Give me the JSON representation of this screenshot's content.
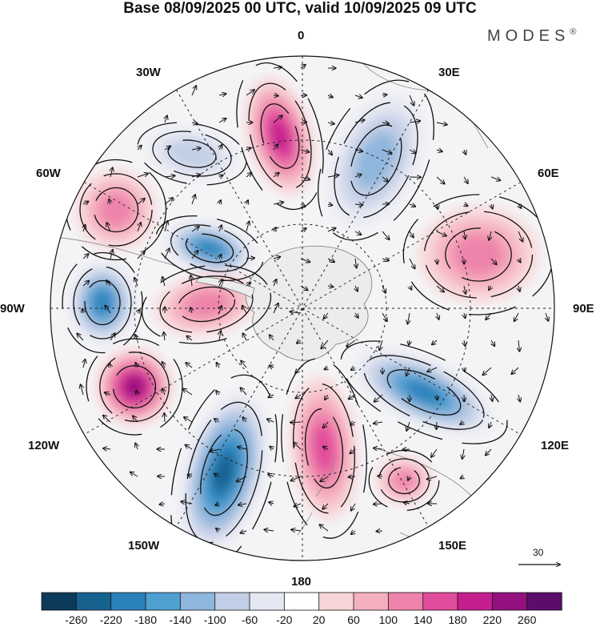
{
  "title": "Base 08/09/2025 00 UTC, valid 10/09/2025 09 UTC",
  "brand": {
    "name": "MODES",
    "mark": "®"
  },
  "longitude_labels": {
    "top": "0",
    "bottom": "180",
    "left": "90W",
    "right": "90E",
    "upper_left_30": "30W",
    "upper_right_30": "30E",
    "upper_left_60": "60W",
    "upper_right_60": "60E",
    "lower_left_120": "120W",
    "lower_right_120": "120E",
    "lower_left_150": "150W",
    "lower_right_150": "150E"
  },
  "reference_vector": {
    "label": "30"
  },
  "colorbar": {
    "ticks": [
      "-260",
      "-220",
      "-180",
      "-140",
      "-100",
      "-60",
      "-20",
      "20",
      "60",
      "100",
      "140",
      "180",
      "220",
      "260"
    ],
    "colors": [
      "#0d3a5a",
      "#17618f",
      "#2b82bb",
      "#4f9fd0",
      "#8fb6dc",
      "#c3cfe6",
      "#e5e7f2",
      "#ffffff",
      "#f8d6d8",
      "#f5b0bf",
      "#ee84ab",
      "#e24c9c",
      "#c51f8e",
      "#93107e",
      "#5c0d6c"
    ]
  },
  "anomalies": [
    {
      "name": "south-atlantic-high",
      "value": 190
    },
    {
      "name": "indian-ocean-low",
      "value": -110
    },
    {
      "name": "west-atlantic-low",
      "value": -90
    },
    {
      "name": "south-america-high",
      "value": 120
    },
    {
      "name": "drake-passage-low",
      "value": -200
    },
    {
      "name": "indian-high",
      "value": 120
    },
    {
      "name": "pacific-low-90w",
      "value": -210
    },
    {
      "name": "bellingshausen-high",
      "value": 110
    },
    {
      "name": "pacific-high-120w",
      "value": 250
    },
    {
      "name": "pacific-low-150w",
      "value": -220
    },
    {
      "name": "ross-sea-high",
      "value": 160
    },
    {
      "name": "southern-ocean-low-110e",
      "value": -200
    },
    {
      "name": "australia-high",
      "value": 100
    }
  ]
}
